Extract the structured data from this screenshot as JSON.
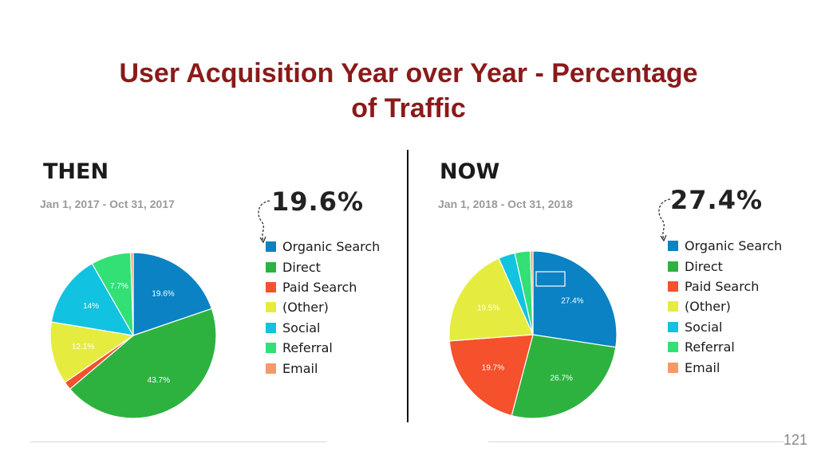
{
  "title": {
    "line1": "User Acquisition Year over Year - Percentage",
    "line2": "of Traffic"
  },
  "then": {
    "heading": "THEN",
    "date_range": "Jan 1, 2017 - Oct 31, 2017",
    "headline_pct": "19.6%"
  },
  "now": {
    "heading": "NOW",
    "date_range": "Jan 1, 2018 - Oct 31, 2018",
    "headline_pct": "27.4%"
  },
  "legend": [
    {
      "label": "Organic Search",
      "color": "#0a82c3"
    },
    {
      "label": "Direct",
      "color": "#2eb23f"
    },
    {
      "label": "Paid Search",
      "color": "#f4512c"
    },
    {
      "label": "(Other)",
      "color": "#e5ec3f"
    },
    {
      "label": "Social",
      "color": "#12c2e1"
    },
    {
      "label": "Referral",
      "color": "#32e075"
    },
    {
      "label": "Email",
      "color": "#f49a69"
    }
  ],
  "page_number": "121",
  "chart_data": [
    {
      "type": "pie",
      "title": "THEN",
      "categories": [
        "Organic Search",
        "Direct",
        "Paid Search",
        "(Other)",
        "Social",
        "Referral",
        "Email"
      ],
      "values": [
        19.6,
        43.7,
        1.6,
        12.1,
        14.0,
        7.7,
        0.5
      ],
      "data_labels": [
        "19.6%",
        "43.7%",
        "",
        "12.1%",
        "14%",
        "7.7%",
        ""
      ],
      "colors": [
        "#0a82c3",
        "#2eb23f",
        "#f4512c",
        "#e5ec3f",
        "#12c2e1",
        "#32e075",
        "#f49a69"
      ],
      "legend_position": "right"
    },
    {
      "type": "pie",
      "title": "NOW",
      "categories": [
        "Organic Search",
        "Direct",
        "Paid Search",
        "(Other)",
        "Social",
        "Referral",
        "Email"
      ],
      "values": [
        27.4,
        26.7,
        19.7,
        19.5,
        3.2,
        3.0,
        0.5
      ],
      "data_labels": [
        "27.4%",
        "26.7%",
        "19.7%",
        "19.5%",
        "",
        "",
        ""
      ],
      "colors": [
        "#0a82c3",
        "#2eb23f",
        "#f4512c",
        "#e5ec3f",
        "#12c2e1",
        "#32e075",
        "#f49a69"
      ],
      "legend_position": "right"
    }
  ]
}
